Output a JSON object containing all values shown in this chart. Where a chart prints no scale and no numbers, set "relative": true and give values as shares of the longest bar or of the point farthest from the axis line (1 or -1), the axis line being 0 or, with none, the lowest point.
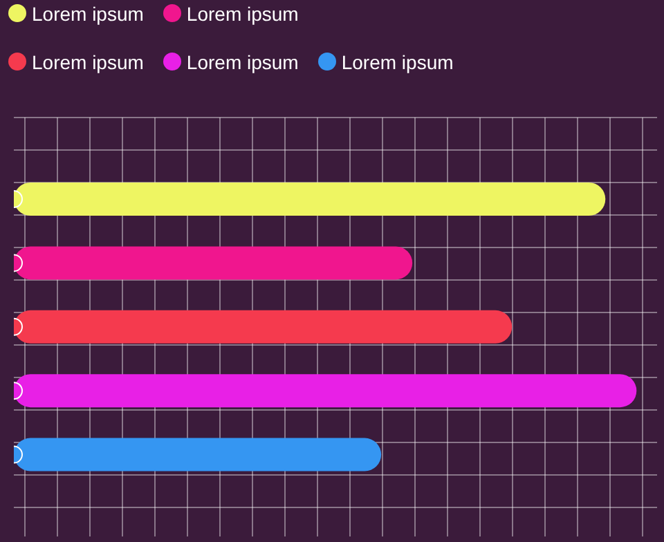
{
  "chart_data": {
    "type": "bar",
    "orientation": "horizontal",
    "relative": true,
    "stacked": true,
    "grid": true,
    "legend": "top left",
    "tick_labels": false,
    "categories": [
      null,
      null,
      null,
      null,
      null
    ],
    "series": [
      {
        "name": "Lorem ipsum",
        "color": "#eef562",
        "values": [
          0.95,
          null,
          null,
          null,
          null
        ]
      },
      {
        "name": "Lorem ipsum",
        "color": "#f0168e",
        "values": [
          null,
          0.64,
          null,
          null,
          null
        ]
      },
      {
        "name": "Lorem ipsum",
        "color": "#f53a4e",
        "values": [
          null,
          null,
          0.8,
          null,
          null
        ]
      },
      {
        "name": "Lorem ipsum",
        "color": "#e820e6",
        "values": [
          null,
          null,
          null,
          1,
          null
        ]
      },
      {
        "name": "Lorem ipsum",
        "color": "#3596f2",
        "values": [
          null,
          null,
          null,
          null,
          0.59
        ]
      }
    ]
  }
}
